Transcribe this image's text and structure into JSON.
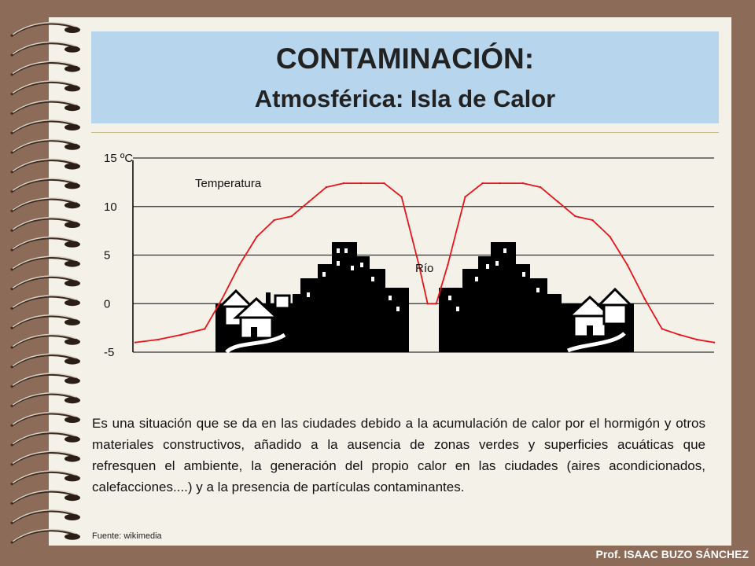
{
  "slide": {
    "title": "CONTAMINACIÓN:",
    "subtitle": "Atmosférica: Isla de Calor",
    "description": "Es una situación que se da en las ciudades debido a la acumulación de calor por el hormigón y otros materiales constructivos,  añadido a la ausencia de zonas verdes y superficies acuáticas que refresquen el ambiente, la generación del propio calor en las ciudades (aires acondicionados, calefacciones....) y a la presencia de partículas contaminantes.",
    "source": "Fuente: wikimedia",
    "author": "Prof. ISAAC BUZO SÁNCHEZ"
  },
  "colors": {
    "background": "#8c6b59",
    "slide": "#f4f1e8",
    "title_box": "#b7d6ee",
    "temperature_line": "#e8141c",
    "buildings": "#000000"
  },
  "chart_data": {
    "type": "line",
    "series_label": "Temperatura",
    "annotation": "Río",
    "y_tick_labels": [
      "15 ºC",
      "10",
      "5",
      "0",
      "-5"
    ],
    "y_ticks": [
      15,
      10,
      5,
      0,
      -5
    ],
    "ylim": [
      -5,
      15
    ],
    "grid": true,
    "x_scale": "no numeric x axis; horizontal position from rural edge through city, river, city to rural edge (0–100)",
    "series": [
      {
        "name": "Temperatura",
        "x": [
          0,
          4,
          8,
          12,
          15,
          18,
          21,
          24,
          27,
          30,
          33,
          36,
          39,
          43,
          46,
          49,
          50.5,
          52,
          54,
          57,
          60,
          63,
          67,
          70,
          73,
          76,
          79,
          82,
          85,
          88,
          91,
          94,
          97,
          100
        ],
        "values": [
          -4.0,
          -3.7,
          -3.2,
          -2.6,
          0.5,
          4.0,
          6.9,
          8.6,
          9.0,
          10.5,
          12.0,
          12.4,
          12.4,
          12.4,
          11.0,
          4.0,
          0.0,
          0.0,
          4.0,
          11.0,
          12.4,
          12.4,
          12.4,
          12.0,
          10.5,
          9.0,
          8.6,
          6.9,
          4.0,
          0.5,
          -2.6,
          -3.2,
          -3.7,
          -4.0
        ]
      }
    ],
    "backdrop": [
      "suburbs",
      "downtown",
      "river",
      "downtown",
      "suburbs"
    ]
  }
}
